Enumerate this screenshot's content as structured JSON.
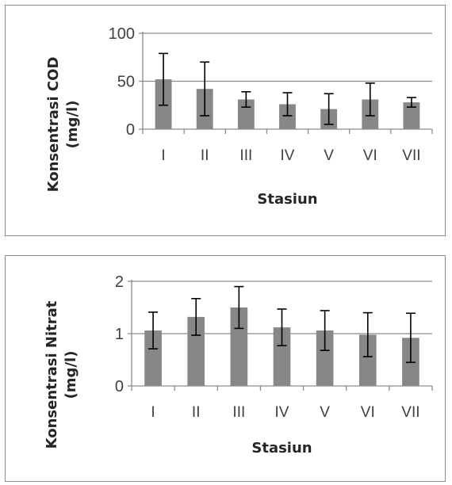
{
  "chart_data": [
    {
      "type": "bar",
      "categories": [
        "I",
        "II",
        "III",
        "IV",
        "V",
        "VI",
        "VII"
      ],
      "values": [
        52,
        42,
        31,
        26,
        21,
        31,
        28
      ],
      "error": [
        27,
        28,
        8,
        12,
        16,
        17,
        5
      ],
      "xlabel": "Stasiun",
      "ylabel_lines": [
        "Konsentrasi COD",
        "(mg/l)"
      ],
      "ylim": [
        0,
        100
      ],
      "yticks": [
        "0",
        "50",
        "100"
      ],
      "ytick_values": [
        0,
        50,
        100
      ],
      "grid": true,
      "bar_color": "#878787"
    },
    {
      "type": "bar",
      "categories": [
        "I",
        "II",
        "III",
        "IV",
        "V",
        "VI",
        "VII"
      ],
      "values": [
        1.06,
        1.32,
        1.5,
        1.12,
        1.06,
        0.98,
        0.92
      ],
      "error": [
        0.35,
        0.35,
        0.4,
        0.35,
        0.38,
        0.42,
        0.47
      ],
      "xlabel": "Stasiun",
      "ylabel_lines": [
        "Konsentrasi Nitrat",
        "(mg/l)"
      ],
      "ylim": [
        0,
        2
      ],
      "yticks": [
        "0",
        "1",
        "2"
      ],
      "ytick_values": [
        0,
        1,
        2
      ],
      "grid": true,
      "bar_color": "#878787"
    }
  ]
}
